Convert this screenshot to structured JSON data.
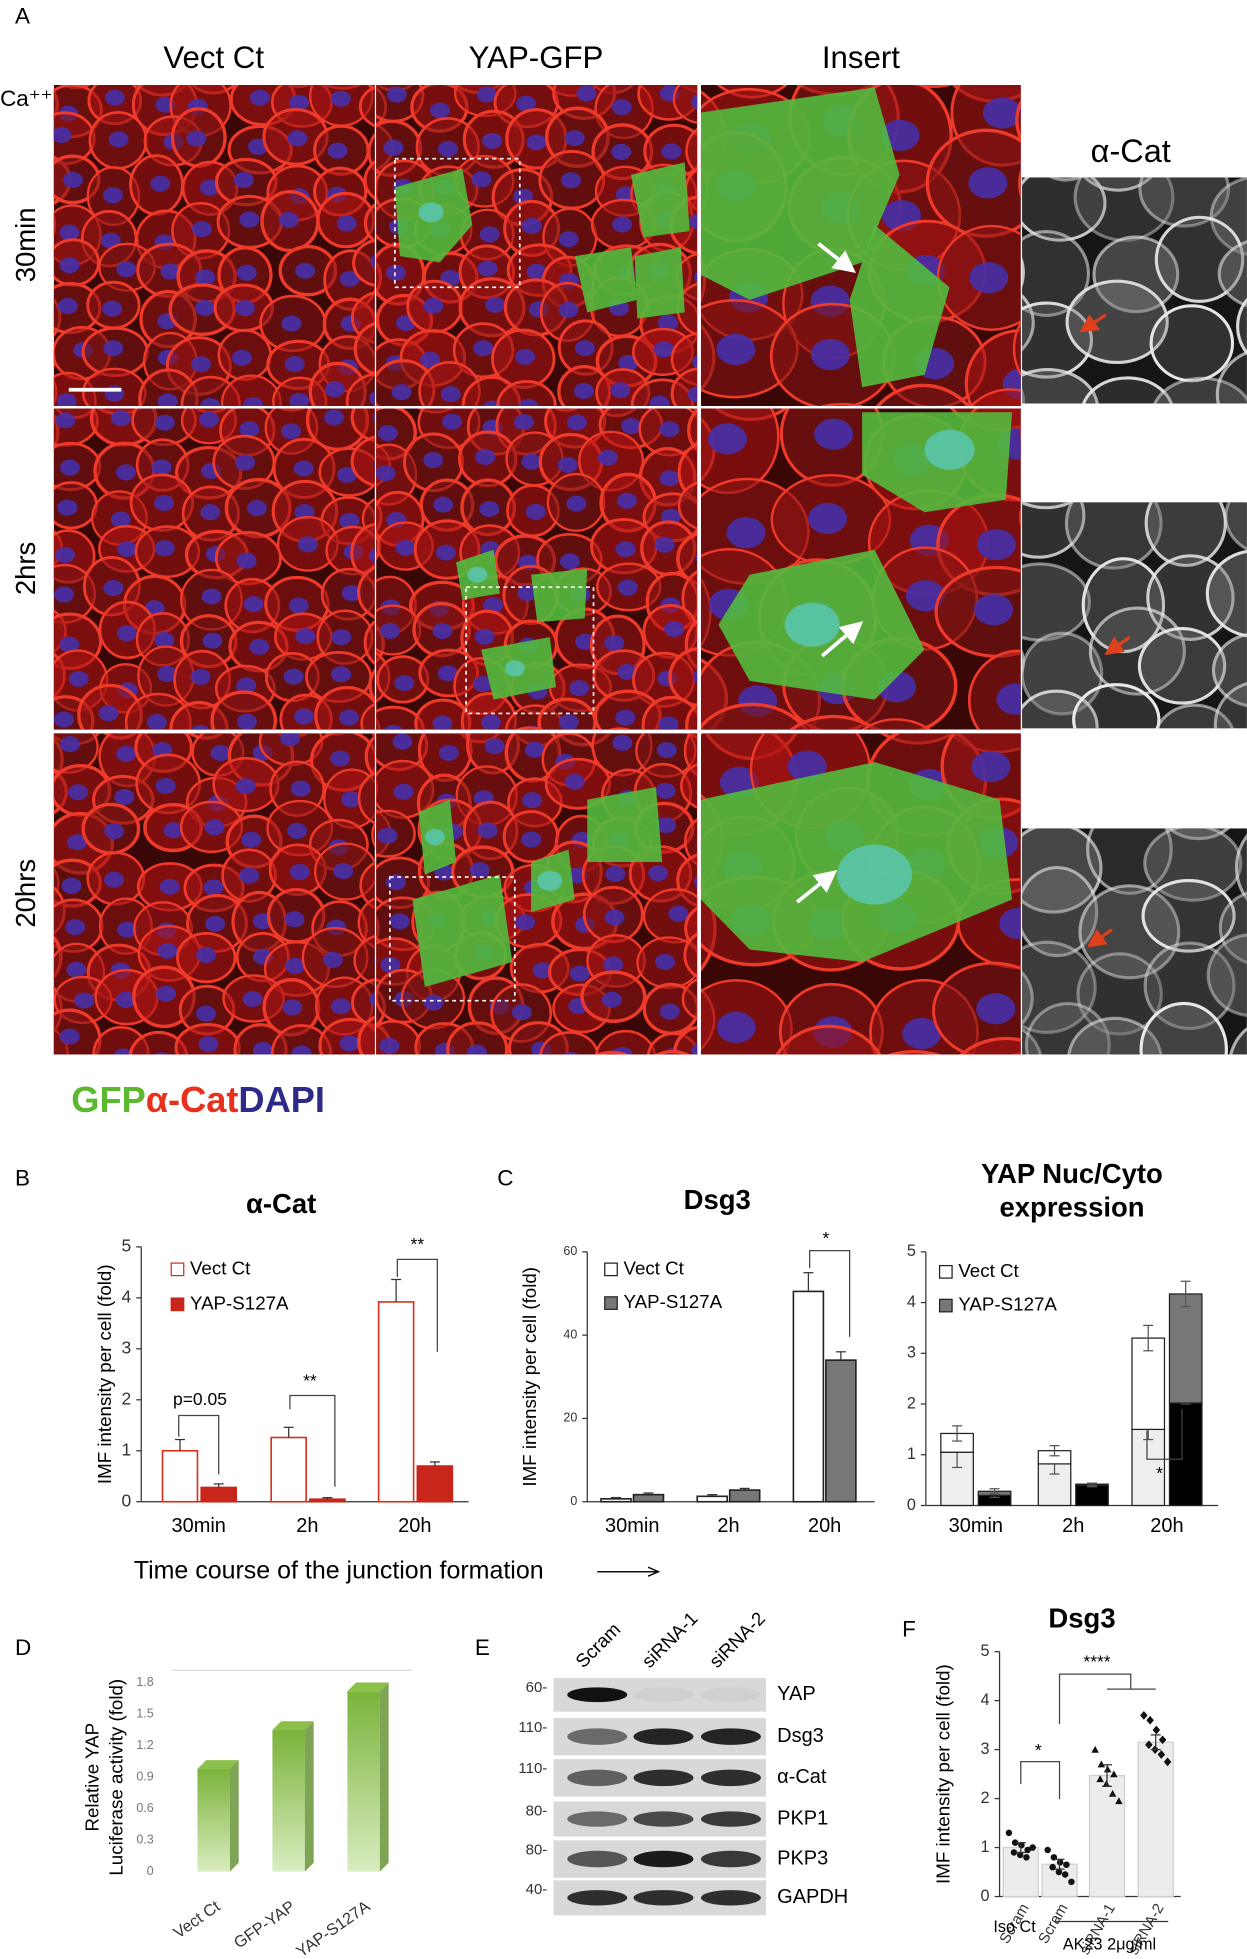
{
  "panel_a": {
    "label": "A",
    "columns": [
      "Vect Ct",
      "YAP-GFP",
      "Insert"
    ],
    "side_title": "α-Cat",
    "ca_label": "Ca⁺⁺",
    "rows": [
      "30min",
      "2hrs",
      "20hrs"
    ],
    "stain_legend": [
      {
        "text": "GFP",
        "color": "#5cb82e"
      },
      {
        "text": "α-Cat",
        "color": "#e8301c"
      },
      {
        "text": "DAPI",
        "color": "#2e2a8a"
      }
    ]
  },
  "time_caption": "Time course of the junction formation",
  "panel_c_label": "C",
  "panel_e": {
    "label": "E",
    "lanes": [
      "Scram",
      "siRNA-1",
      "siRNA-2"
    ],
    "bands": [
      {
        "name": "YAP",
        "marker": "60-"
      },
      {
        "name": "Dsg3",
        "marker": "110-"
      },
      {
        "name": "α-Cat",
        "marker": "110-"
      },
      {
        "name": "PKP1",
        "marker": "80-"
      },
      {
        "name": "PKP3",
        "marker": "80-"
      },
      {
        "name": "GAPDH",
        "marker": "40-"
      }
    ]
  },
  "chart_data": [
    {
      "type": "bar",
      "panel": "B",
      "title": "α-Cat",
      "y_label": "IMF intensity per cell (fold)",
      "categories": [
        "30min",
        "2h",
        "20h"
      ],
      "ylim": [
        0,
        5
      ],
      "yticks": [
        0,
        1,
        2,
        3,
        4,
        5
      ],
      "series": [
        {
          "name": "Vect Ct",
          "color": "#d7301f",
          "fill": "#ffffff",
          "values": [
            1.0,
            1.26,
            3.92
          ],
          "errors": [
            0.22,
            0.2,
            0.44
          ]
        },
        {
          "name": "YAP-S127A",
          "color": "#c8251b",
          "fill": "#c8251b",
          "values": [
            0.28,
            0.05,
            0.7
          ],
          "errors": [
            0.07,
            0.03,
            0.08
          ]
        }
      ],
      "annotations": [
        "p=0.05",
        "**",
        "**"
      ]
    },
    {
      "type": "bar",
      "title": "Dsg3",
      "y_label": "IMF intensity per cell (fold)",
      "categories": [
        "30min",
        "2h",
        "20h"
      ],
      "ylim": [
        0,
        60
      ],
      "yticks": [
        0,
        20,
        40,
        60
      ],
      "series": [
        {
          "name": "Vect Ct",
          "color": "#222222",
          "fill": "#ffffff",
          "values": [
            0.7,
            1.3,
            50.5
          ],
          "errors": [
            0.3,
            0.4,
            4.5
          ]
        },
        {
          "name": "YAP-S127A",
          "color": "#222222",
          "fill": "#777777",
          "values": [
            1.7,
            2.8,
            34
          ],
          "errors": [
            0.4,
            0.4,
            2
          ]
        }
      ],
      "annotations": [
        "*"
      ]
    },
    {
      "type": "stacked_bar",
      "title": [
        "YAP Nuc/Cyto",
        "expression"
      ],
      "categories": [
        "30min",
        "2h",
        "20h"
      ],
      "ylim": [
        0,
        5
      ],
      "yticks": [
        0,
        1,
        2,
        3,
        4,
        5
      ],
      "series": [
        {
          "name": "Vect Ct",
          "color": "#222222",
          "fill": "#ffffff",
          "stack": [
            {
              "fill": "#eeeeee",
              "values": [
                1.05,
                0.82,
                1.5
              ],
              "errors": [
                0.3,
                0.2,
                0.2
              ]
            },
            {
              "fill": "#ffffff",
              "values": [
                0.37,
                0.26,
                1.8
              ],
              "errors": [
                0.15,
                0.1,
                0.25
              ]
            }
          ]
        },
        {
          "name": "YAP-S127A",
          "color": "#222222",
          "fill": "#777777",
          "stack": [
            {
              "fill": "#000000",
              "values": [
                0.2,
                0.4,
                2.02
              ],
              "errors": [
                0.04,
                0.03,
                0.02
              ]
            },
            {
              "fill": "#777777",
              "values": [
                0.08,
                0.02,
                2.15
              ],
              "errors": [
                0.05,
                0.02,
                0.25
              ]
            }
          ]
        }
      ],
      "annotations": [
        "*"
      ]
    },
    {
      "type": "bar3d",
      "panel": "D",
      "y_label": [
        "Relative YAP",
        "Luciferase activity (fold)"
      ],
      "categories": [
        "Vect Ct",
        "GFP-YAP",
        "YAP-S127A"
      ],
      "values": [
        0.98,
        1.35,
        1.72
      ],
      "color": "#8cc04a",
      "ylim": [
        0,
        1.8
      ],
      "yticks": [
        0,
        0.3,
        0.6,
        0.9,
        1.2,
        1.5,
        1.8
      ]
    },
    {
      "type": "dot_bar",
      "panel": "F",
      "title": "Dsg3",
      "y_label": "IMF intensity per cell (fold)",
      "categories": [
        "Scram",
        "Scram",
        "siRNA-1",
        "siRNA-2"
      ],
      "group_labels": [
        "Iso Ct",
        "AK23 2μg/ml"
      ],
      "values": [
        1.0,
        0.66,
        2.47,
        3.15
      ],
      "errors": [
        0.1,
        0.1,
        0.22,
        0.15
      ],
      "points": [
        [
          1.3,
          1.1,
          1.05,
          0.95,
          0.9,
          0.85,
          0.8,
          1.0
        ],
        [
          0.95,
          0.8,
          0.7,
          0.65,
          0.6,
          0.5,
          0.45,
          0.3
        ],
        [
          3.0,
          2.7,
          2.6,
          2.5,
          2.4,
          2.3,
          2.1,
          1.95
        ],
        [
          3.7,
          3.6,
          3.4,
          3.2,
          3.1,
          3.0,
          2.9,
          2.75
        ]
      ],
      "markers": [
        "circle",
        "circle",
        "triangle",
        "diamond"
      ],
      "ylim": [
        0,
        5
      ],
      "yticks": [
        0,
        1,
        2,
        3,
        4,
        5
      ],
      "annotations": [
        "*",
        "****"
      ]
    }
  ]
}
